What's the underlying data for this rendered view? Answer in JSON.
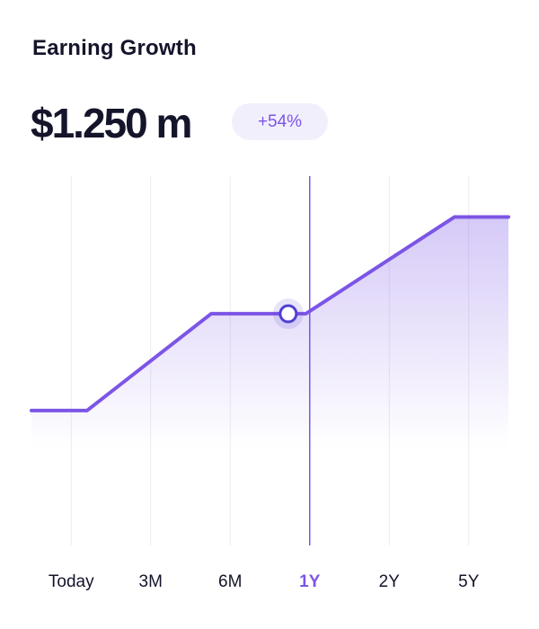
{
  "header": {
    "title": "Earning Growth",
    "amount": "$1.250 m",
    "badge": "+54%"
  },
  "chart_data": {
    "type": "line",
    "categories": [
      "Today",
      "3M",
      "6M",
      "1Y",
      "2Y",
      "5Y"
    ],
    "selected": 3,
    "x": [
      -0.5,
      0.2,
      1.76,
      2.95,
      4.82,
      5.5
    ],
    "values": [
      37,
      37,
      63,
      63,
      89,
      89
    ],
    "marker": {
      "x": 2.73,
      "y": 63
    },
    "xlim": [
      -0.5,
      5.5
    ],
    "ylim": [
      0,
      100
    ],
    "color": "#7c55e6",
    "grid": true
  }
}
